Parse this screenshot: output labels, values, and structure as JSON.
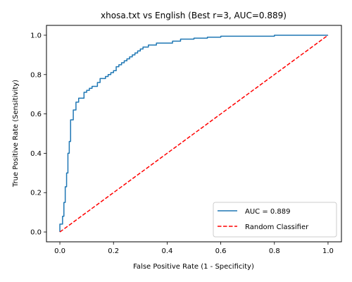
{
  "chart_data": {
    "type": "line",
    "title": "xhosa.txt vs English (Best r=3, AUC=0.889)",
    "xlabel": "False Positive Rate (1 - Specificity)",
    "ylabel": "True Positive Rate (Sensitivity)",
    "xlim": [
      -0.05,
      1.05
    ],
    "ylim": [
      -0.05,
      1.05
    ],
    "xticks": [
      "0.0",
      "0.2",
      "0.4",
      "0.6",
      "0.8",
      "1.0"
    ],
    "yticks": [
      "0.0",
      "0.2",
      "0.4",
      "0.6",
      "0.8",
      "1.0"
    ],
    "grid": false,
    "legend_position": "lower-right",
    "series": [
      {
        "name": "AUC = 0.889",
        "color": "#1f77b4",
        "style": "solid",
        "x": [
          0,
          0,
          0.01,
          0.01,
          0.015,
          0.015,
          0.02,
          0.02,
          0.025,
          0.025,
          0.03,
          0.03,
          0.035,
          0.035,
          0.04,
          0.04,
          0.05,
          0.05,
          0.055,
          0.055,
          0.06,
          0.06,
          0.07,
          0.07,
          0.08,
          0.08,
          0.09,
          0.09,
          0.1,
          0.1,
          0.11,
          0.11,
          0.12,
          0.12,
          0.13,
          0.13,
          0.14,
          0.14,
          0.15,
          0.15,
          0.16,
          0.16,
          0.17,
          0.17,
          0.18,
          0.18,
          0.19,
          0.19,
          0.2,
          0.2,
          0.21,
          0.21,
          0.22,
          0.22,
          0.23,
          0.23,
          0.24,
          0.24,
          0.25,
          0.25,
          0.26,
          0.26,
          0.27,
          0.27,
          0.28,
          0.28,
          0.29,
          0.29,
          0.3,
          0.3,
          0.31,
          0.31,
          0.33,
          0.33,
          0.36,
          0.36,
          0.4,
          0.4,
          0.42,
          0.42,
          0.45,
          0.45,
          0.5,
          0.5,
          0.55,
          0.55,
          0.6,
          0.6,
          0.8,
          0.8,
          0.83,
          0.83,
          1.0
        ],
        "y": [
          0,
          0.04,
          0.04,
          0.08,
          0.08,
          0.15,
          0.15,
          0.23,
          0.23,
          0.3,
          0.3,
          0.4,
          0.4,
          0.46,
          0.46,
          0.57,
          0.57,
          0.62,
          0.62,
          0.62,
          0.62,
          0.66,
          0.66,
          0.68,
          0.68,
          0.68,
          0.68,
          0.71,
          0.71,
          0.72,
          0.72,
          0.73,
          0.73,
          0.74,
          0.74,
          0.74,
          0.74,
          0.76,
          0.76,
          0.78,
          0.78,
          0.78,
          0.78,
          0.79,
          0.79,
          0.8,
          0.8,
          0.81,
          0.81,
          0.82,
          0.82,
          0.84,
          0.84,
          0.85,
          0.85,
          0.86,
          0.86,
          0.87,
          0.87,
          0.88,
          0.88,
          0.89,
          0.89,
          0.9,
          0.9,
          0.91,
          0.91,
          0.92,
          0.92,
          0.93,
          0.93,
          0.94,
          0.94,
          0.95,
          0.95,
          0.96,
          0.96,
          0.96,
          0.96,
          0.97,
          0.97,
          0.98,
          0.98,
          0.985,
          0.985,
          0.99,
          0.99,
          0.995,
          0.995,
          1.0,
          1.0,
          1.0,
          1.0
        ]
      },
      {
        "name": "Random Classifier",
        "color": "#ff0000",
        "style": "dashed",
        "x": [
          0,
          1
        ],
        "y": [
          0,
          1
        ]
      }
    ]
  }
}
